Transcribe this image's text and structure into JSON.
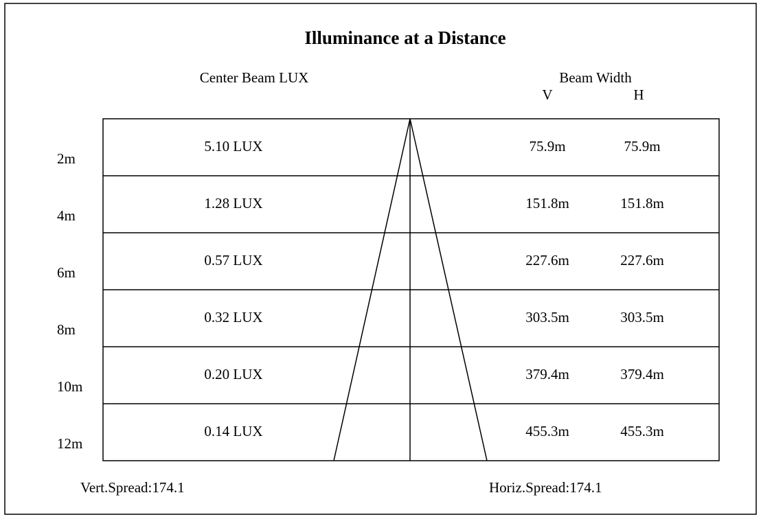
{
  "title": "Illuminance at a Distance",
  "headers": {
    "lux": "Center Beam LUX",
    "beam_width": "Beam Width",
    "v": "V",
    "h": "H"
  },
  "rows": [
    {
      "distance": "2m",
      "lux": "5.10 LUX",
      "v": "75.9m",
      "h": "75.9m"
    },
    {
      "distance": "4m",
      "lux": "1.28 LUX",
      "v": "151.8m",
      "h": "151.8m"
    },
    {
      "distance": "6m",
      "lux": "0.57 LUX",
      "v": "227.6m",
      "h": "227.6m"
    },
    {
      "distance": "8m",
      "lux": "0.32 LUX",
      "v": "303.5m",
      "h": "303.5m"
    },
    {
      "distance": "10m",
      "lux": "0.20 LUX",
      "v": "379.4m",
      "h": "379.4m"
    },
    {
      "distance": "12m",
      "lux": "0.14 LUX",
      "v": "455.3m",
      "h": "455.3m"
    }
  ],
  "footer": {
    "vert": "Vert.Spread:174.1",
    "horiz": "Horiz.Spread:174.1"
  }
}
